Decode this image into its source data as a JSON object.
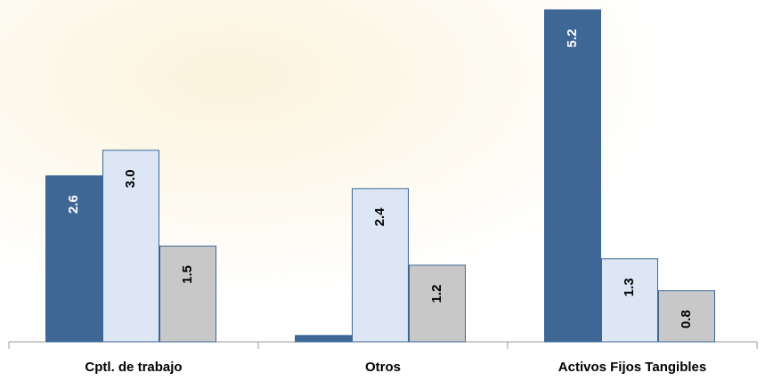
{
  "chart_data": {
    "type": "bar",
    "categories": [
      "Cptl. de trabajo",
      "Otros",
      "Activos Fijos Tangibles"
    ],
    "series": [
      {
        "color": "#3f6796",
        "values": [
          2.6,
          0.1,
          5.2
        ],
        "value_labels": [
          "2.6",
          null,
          "5.2"
        ]
      },
      {
        "color": "#dce6f4",
        "values": [
          3.0,
          2.4,
          1.3
        ],
        "value_labels": [
          "3.0",
          "2.4",
          "1.3"
        ]
      },
      {
        "color": "#c8c8c8",
        "values": [
          1.5,
          1.2,
          0.8
        ],
        "value_labels": [
          "1.5",
          "1.2",
          "0.8"
        ]
      }
    ],
    "ylim": [
      0,
      5.2
    ]
  }
}
